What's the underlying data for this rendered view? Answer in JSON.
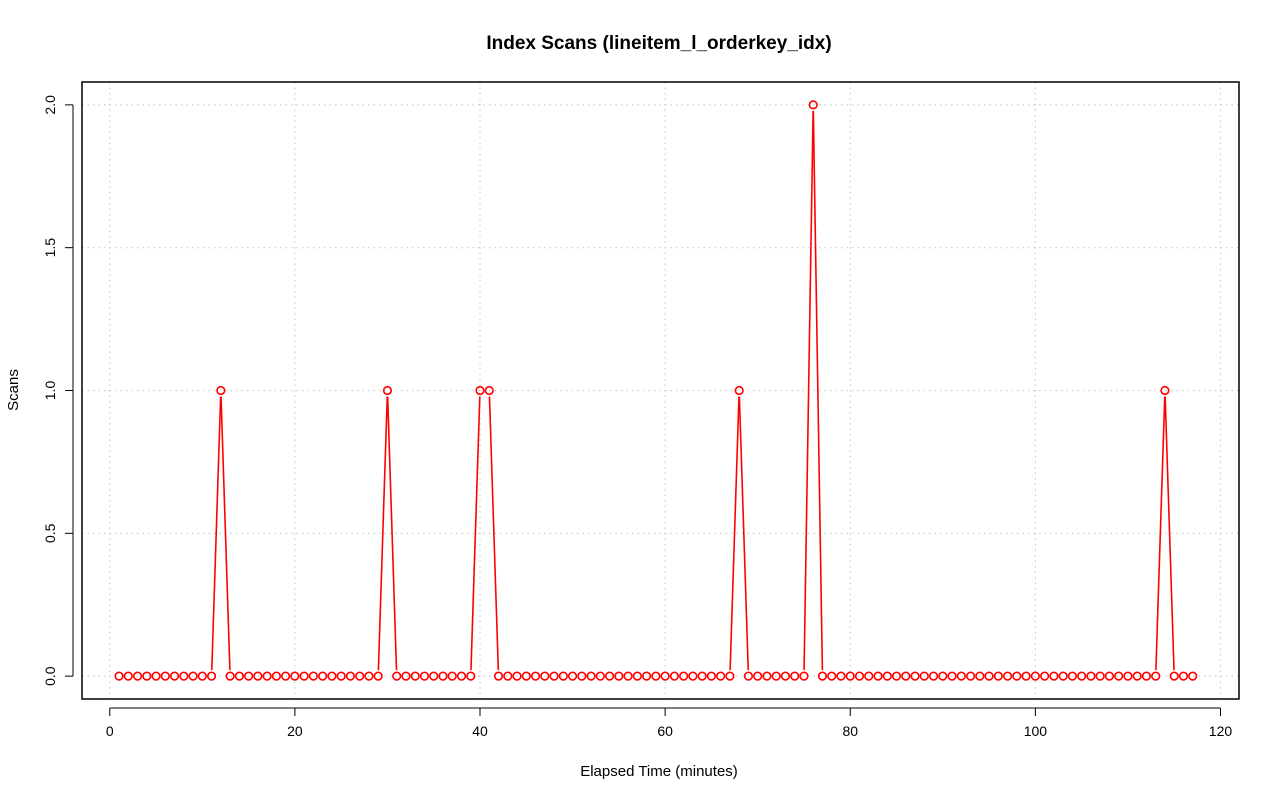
{
  "chart_data": {
    "type": "line",
    "title": "Index Scans (lineitem_l_orderkey_idx)",
    "xlabel": "Elapsed Time (minutes)",
    "ylabel": "Scans",
    "xlim": [
      -3,
      122
    ],
    "ylim": [
      -0.08,
      2.08
    ],
    "x_ticks": [
      0,
      20,
      40,
      60,
      80,
      100,
      120
    ],
    "y_ticks": [
      0.0,
      0.5,
      1.0,
      1.5,
      2.0
    ],
    "x_tick_labels": [
      "0",
      "20",
      "40",
      "60",
      "80",
      "100",
      "120"
    ],
    "y_tick_labels": [
      "0.0",
      "0.5",
      "1.0",
      "1.5",
      "2.0"
    ],
    "grid": true,
    "series": [
      {
        "color": "#ff0000",
        "style": "both (points and lines)",
        "x": [
          1,
          2,
          3,
          4,
          5,
          6,
          7,
          8,
          9,
          10,
          11,
          12,
          13,
          14,
          15,
          16,
          17,
          18,
          19,
          20,
          21,
          22,
          23,
          24,
          25,
          26,
          27,
          28,
          29,
          30,
          31,
          32,
          33,
          34,
          35,
          36,
          37,
          38,
          39,
          40,
          41,
          42,
          43,
          44,
          45,
          46,
          47,
          48,
          49,
          50,
          51,
          52,
          53,
          54,
          55,
          56,
          57,
          58,
          59,
          60,
          61,
          62,
          63,
          64,
          65,
          66,
          67,
          68,
          69,
          70,
          71,
          72,
          73,
          74,
          75,
          76,
          77,
          78,
          79,
          80,
          81,
          82,
          83,
          84,
          85,
          86,
          87,
          88,
          89,
          90,
          91,
          92,
          93,
          94,
          95,
          96,
          97,
          98,
          99,
          100,
          101,
          102,
          103,
          104,
          105,
          106,
          107,
          108,
          109,
          110,
          111,
          112,
          113,
          114,
          115,
          116,
          117
        ],
        "y": [
          0,
          0,
          0,
          0,
          0,
          0,
          0,
          0,
          0,
          0,
          0,
          1,
          0,
          0,
          0,
          0,
          0,
          0,
          0,
          0,
          0,
          0,
          0,
          0,
          0,
          0,
          0,
          0,
          0,
          1,
          0,
          0,
          0,
          0,
          0,
          0,
          0,
          0,
          0,
          1,
          1,
          0,
          0,
          0,
          0,
          0,
          0,
          0,
          0,
          0,
          0,
          0,
          0,
          0,
          0,
          0,
          0,
          0,
          0,
          0,
          0,
          0,
          0,
          0,
          0,
          0,
          0,
          1,
          0,
          0,
          0,
          0,
          0,
          0,
          0,
          2,
          0,
          0,
          0,
          0,
          0,
          0,
          0,
          0,
          0,
          0,
          0,
          0,
          0,
          0,
          0,
          0,
          0,
          0,
          0,
          0,
          0,
          0,
          0,
          0,
          0,
          0,
          0,
          0,
          0,
          0,
          0,
          0,
          0,
          0,
          0,
          0,
          0,
          1,
          0,
          0,
          0
        ]
      }
    ]
  }
}
